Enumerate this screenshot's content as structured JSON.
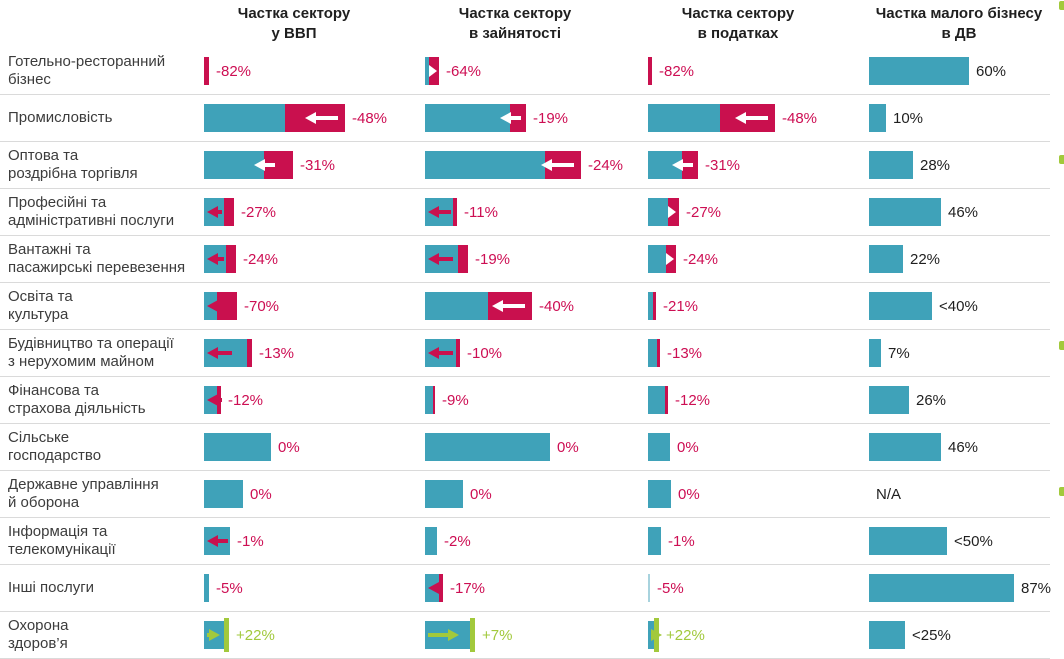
{
  "chart_data": {
    "type": "bar",
    "note": "Sector bars: teal = sector share (approx rendered length in px), red segment = decline portion, green = growth; value label = change in percent",
    "columns": [
      "Частка сектору\nу ВВП",
      "Частка сектору\nв зайнятості",
      "Частка сектору\nв податках",
      "Частка малого бізнесу\nв ДВ"
    ],
    "colors": {
      "teal": "#3fa2b9",
      "teal_faint": "#a8d3de",
      "crimson": "#c9104e",
      "green": "#a2c93c",
      "value_negative_text": "#cd0e53",
      "value_positive_text": "#a2c93c",
      "dark_text": "#1f1f1f",
      "row_label_text": "#3c3c3c",
      "separator": "#dadada"
    },
    "rows": [
      {
        "sector": "Готельно-ресторанний\nбізнес",
        "cells": [
          {
            "v": "-82%",
            "t": 0,
            "r": 5,
            "m": "",
            "lc": "neg"
          },
          {
            "v": "-64%",
            "t": 4,
            "r": 10,
            "m": "notch",
            "lc": "neg"
          },
          {
            "v": "-82%",
            "t": 0,
            "r": 4,
            "m": "",
            "lc": "neg"
          },
          {
            "v": "60%",
            "t": 100,
            "r": 0,
            "m": "",
            "lc": "dark"
          }
        ]
      },
      {
        "sector": "Промисловість",
        "cells": [
          {
            "v": "-48%",
            "t": 81,
            "r": 60,
            "m": "warrow",
            "lc": "neg"
          },
          {
            "v": "-19%",
            "t": 85,
            "r": 16,
            "m": "warrow",
            "lc": "neg"
          },
          {
            "v": "-48%",
            "t": 72,
            "r": 55,
            "m": "warrow",
            "lc": "neg"
          },
          {
            "v": "10%",
            "t": 17,
            "r": 0,
            "m": "",
            "lc": "dark"
          }
        ]
      },
      {
        "sector": "Оптова та\nроздрібна торгівля",
        "cells": [
          {
            "v": "-31%",
            "t": 60,
            "r": 29,
            "m": "warrow",
            "lc": "neg"
          },
          {
            "v": "-24%",
            "t": 120,
            "r": 36,
            "m": "warrow",
            "lc": "neg"
          },
          {
            "v": "-31%",
            "t": 34,
            "r": 16,
            "m": "warrow",
            "lc": "neg"
          },
          {
            "v": "28%",
            "t": 44,
            "r": 0,
            "m": "",
            "lc": "dark"
          }
        ]
      },
      {
        "sector": "Професійні та\nадміністративні послуги",
        "cells": [
          {
            "v": "-27%",
            "t": 20,
            "r": 10,
            "m": "rarrow",
            "lc": "neg"
          },
          {
            "v": "-11%",
            "t": 28,
            "r": 4,
            "m": "rarrow",
            "lc": "neg"
          },
          {
            "v": "-27%",
            "t": 20,
            "r": 11,
            "m": "notch",
            "lc": "neg"
          },
          {
            "v": "46%",
            "t": 72,
            "r": 0,
            "m": "",
            "lc": "dark"
          }
        ]
      },
      {
        "sector": "Вантажні та\nпасажирські перевезення",
        "cells": [
          {
            "v": "-24%",
            "t": 22,
            "r": 10,
            "m": "rarrow",
            "lc": "neg"
          },
          {
            "v": "-19%",
            "t": 33,
            "r": 10,
            "m": "rarrow",
            "lc": "neg"
          },
          {
            "v": "-24%",
            "t": 18,
            "r": 10,
            "m": "notch",
            "lc": "neg"
          },
          {
            "v": "22%",
            "t": 34,
            "r": 0,
            "m": "",
            "lc": "dark"
          }
        ]
      },
      {
        "sector": "Освіта та\nкультура",
        "cells": [
          {
            "v": "-70%",
            "t": 13,
            "r": 20,
            "m": "rarrow",
            "lc": "neg"
          },
          {
            "v": "-40%",
            "t": 63,
            "r": 44,
            "m": "warrow",
            "lc": "neg"
          },
          {
            "v": "-21%",
            "t": 5,
            "r": 3,
            "m": "",
            "lc": "neg"
          },
          {
            "v": "<40%",
            "t": 63,
            "r": 0,
            "m": "",
            "lc": "dark"
          }
        ]
      },
      {
        "sector": "Будівництво та операції\nз нерухомим майном",
        "cells": [
          {
            "v": "-13%",
            "t": 43,
            "r": 5,
            "m": "rarrow",
            "lc": "neg"
          },
          {
            "v": "-10%",
            "t": 31,
            "r": 4,
            "m": "rarrow",
            "lc": "neg"
          },
          {
            "v": "-13%",
            "t": 9,
            "r": 3,
            "m": "",
            "lc": "neg"
          },
          {
            "v": "7%",
            "t": 12,
            "r": 0,
            "m": "",
            "lc": "dark"
          }
        ]
      },
      {
        "sector": "Фінансова та\nстрахова діяльність",
        "cells": [
          {
            "v": "-12%",
            "t": 13,
            "r": 4,
            "m": "rarrow",
            "lc": "neg"
          },
          {
            "v": "-9%",
            "t": 8,
            "r": 2,
            "m": "",
            "lc": "neg"
          },
          {
            "v": "-12%",
            "t": 17,
            "r": 3,
            "m": "",
            "lc": "neg"
          },
          {
            "v": "26%",
            "t": 40,
            "r": 0,
            "m": "",
            "lc": "dark"
          }
        ]
      },
      {
        "sector": "Сільське\nгосподарство",
        "cells": [
          {
            "v": "0%",
            "t": 67,
            "r": 0,
            "m": "",
            "lc": "neg"
          },
          {
            "v": "0%",
            "t": 125,
            "r": 0,
            "m": "",
            "lc": "neg"
          },
          {
            "v": "0%",
            "t": 22,
            "r": 0,
            "m": "",
            "lc": "neg"
          },
          {
            "v": "46%",
            "t": 72,
            "r": 0,
            "m": "",
            "lc": "dark"
          }
        ]
      },
      {
        "sector": "Державне управління\nй оборона",
        "cells": [
          {
            "v": "0%",
            "t": 39,
            "r": 0,
            "m": "",
            "lc": "neg"
          },
          {
            "v": "0%",
            "t": 38,
            "r": 0,
            "m": "",
            "lc": "neg"
          },
          {
            "v": "0%",
            "t": 23,
            "r": 0,
            "m": "",
            "lc": "neg"
          },
          {
            "v": "N/A",
            "t": 0,
            "r": 0,
            "m": "",
            "lc": "dark"
          }
        ]
      },
      {
        "sector": "Інформація та\nтелекомунікації",
        "cells": [
          {
            "v": "-1%",
            "t": 26,
            "r": 0,
            "m": "rarrow",
            "lc": "neg"
          },
          {
            "v": "-2%",
            "t": 12,
            "r": 0,
            "m": "",
            "lc": "neg"
          },
          {
            "v": "-1%",
            "t": 13,
            "r": 0,
            "m": "",
            "lc": "neg"
          },
          {
            "v": "<50%",
            "t": 78,
            "r": 0,
            "m": "",
            "lc": "dark"
          }
        ]
      },
      {
        "sector": "Інші послуги",
        "cells": [
          {
            "v": "-5%",
            "t": 5,
            "r": 0,
            "m": "",
            "lc": "neg"
          },
          {
            "v": "-17%",
            "t": 14,
            "r": 4,
            "m": "rarrow",
            "lc": "neg"
          },
          {
            "v": "-5%",
            "t": 2,
            "r": 0,
            "m": "",
            "lc": "neg",
            "faint": true
          },
          {
            "v": "87%",
            "t": 145,
            "r": 0,
            "m": "",
            "lc": "dark"
          }
        ]
      },
      {
        "sector": "Охорона\nздоров’я",
        "cells": [
          {
            "v": "+22%",
            "t": 20,
            "r": 5,
            "m": "green",
            "lc": "pos"
          },
          {
            "v": "+7%",
            "t": 45,
            "r": 5,
            "m": "green",
            "lc": "pos"
          },
          {
            "v": "+22%",
            "t": 6,
            "r": 5,
            "m": "green",
            "lc": "pos"
          },
          {
            "v": "<25%",
            "t": 36,
            "r": 0,
            "m": "",
            "lc": "dark"
          }
        ]
      }
    ],
    "column_keys": [
      "gdp",
      "employment",
      "taxes",
      "small-business"
    ]
  },
  "decor": {
    "bullet_dots_y": [
      1,
      155,
      341,
      487
    ]
  }
}
